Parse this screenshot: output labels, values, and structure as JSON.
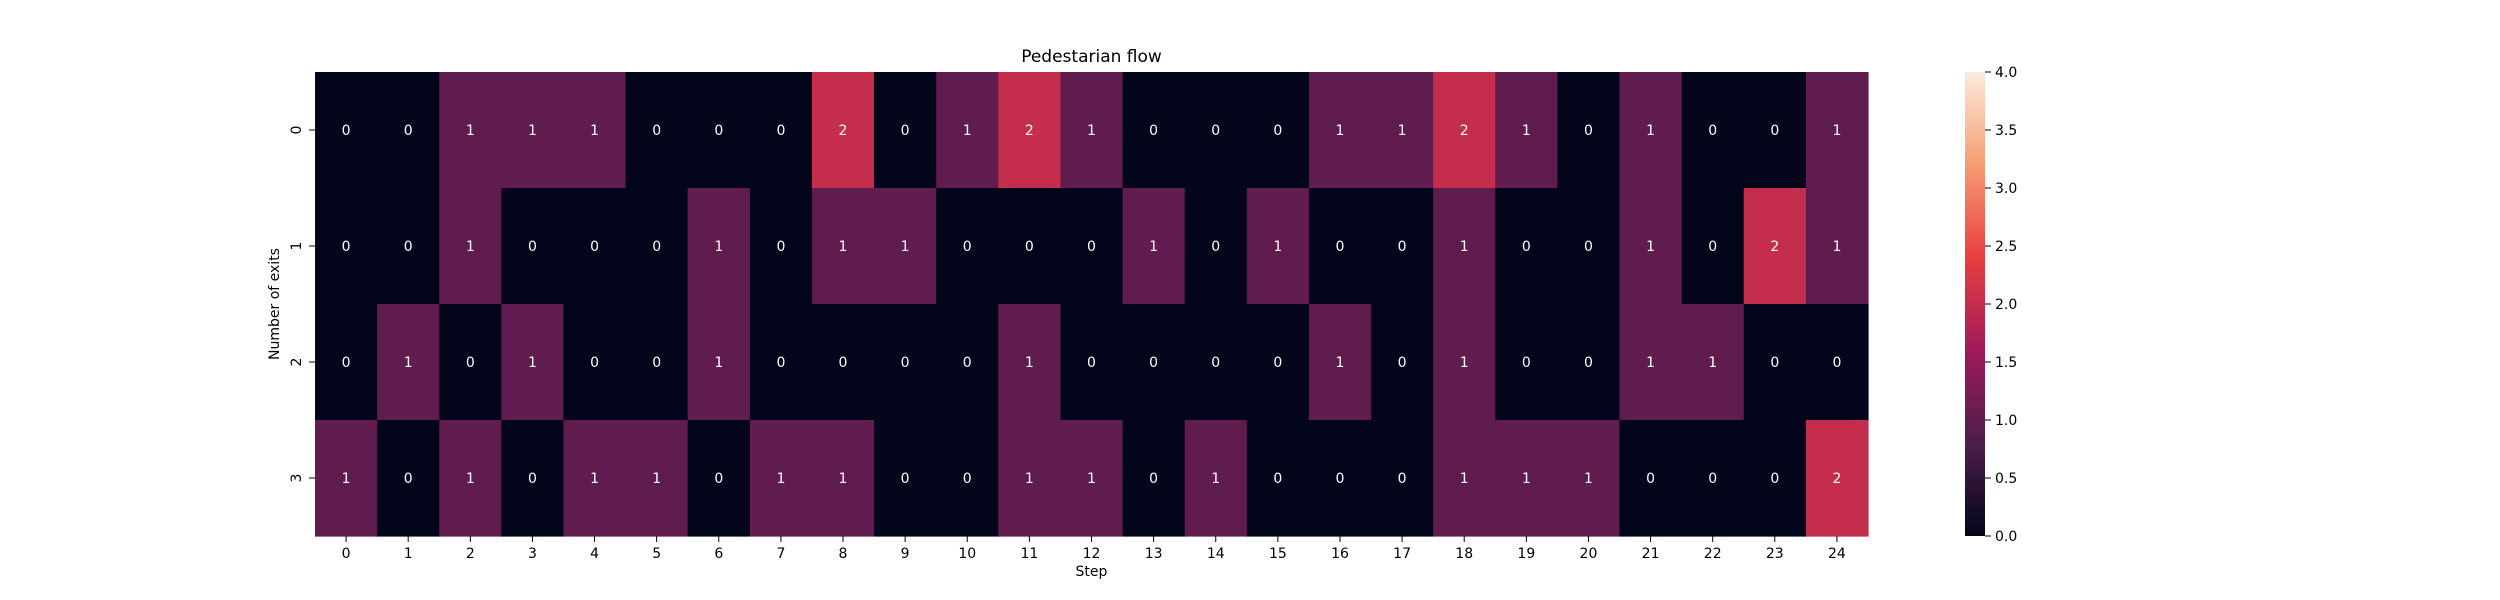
{
  "chart_data": {
    "type": "heatmap",
    "title": "Pedestarian flow",
    "xlabel": "Step",
    "ylabel": "Number of exits",
    "x_categories": [
      "0",
      "1",
      "2",
      "3",
      "4",
      "5",
      "6",
      "7",
      "8",
      "9",
      "10",
      "11",
      "12",
      "13",
      "14",
      "15",
      "16",
      "17",
      "18",
      "19",
      "20",
      "21",
      "22",
      "23",
      "24"
    ],
    "y_categories": [
      "0",
      "1",
      "2",
      "3"
    ],
    "values": [
      [
        0,
        0,
        1,
        1,
        1,
        0,
        0,
        0,
        2,
        0,
        1,
        2,
        1,
        0,
        0,
        0,
        1,
        1,
        2,
        1,
        0,
        1,
        0,
        0,
        1
      ],
      [
        0,
        0,
        1,
        0,
        0,
        0,
        1,
        0,
        1,
        1,
        0,
        0,
        0,
        1,
        0,
        1,
        0,
        0,
        1,
        0,
        0,
        1,
        0,
        2,
        1
      ],
      [
        0,
        1,
        0,
        1,
        0,
        0,
        1,
        0,
        0,
        0,
        0,
        1,
        0,
        0,
        0,
        0,
        1,
        0,
        1,
        0,
        0,
        1,
        1,
        0,
        0
      ],
      [
        1,
        0,
        1,
        0,
        1,
        1,
        0,
        1,
        1,
        0,
        0,
        1,
        1,
        0,
        1,
        0,
        0,
        0,
        1,
        1,
        1,
        0,
        0,
        0,
        2
      ]
    ],
    "colorbar": {
      "min": 0,
      "max": 4,
      "ticks": [
        "0.0",
        "0.5",
        "1.0",
        "1.5",
        "2.0",
        "2.5",
        "3.0",
        "3.5",
        "4.0"
      ],
      "colormap": "rocket",
      "color_stops": [
        "#03051a",
        "#4c1d4b",
        "#a11a5b",
        "#e83f3f",
        "#f69c73",
        "#faebdd"
      ]
    },
    "annotate": true,
    "grid": false,
    "legend": "colorbar-right"
  }
}
